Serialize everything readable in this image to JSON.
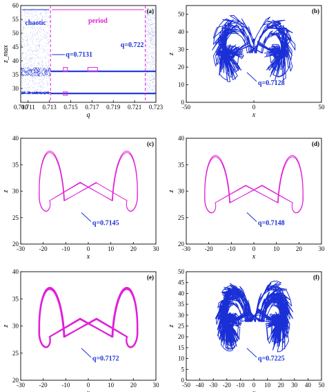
{
  "colors": {
    "blue": "#1a2fd6",
    "magenta": "#e020d8",
    "black": "#000000"
  },
  "chart_data": [
    {
      "panel": "(a)",
      "type": "scatter",
      "xlabel": "q",
      "ylabel": "z_max",
      "xlim": [
        0.7103,
        0.723
      ],
      "ylim": [
        25,
        60
      ],
      "xticks": [
        0.7103,
        0.711,
        0.713,
        0.715,
        0.717,
        0.719,
        0.721,
        0.723
      ],
      "xtick_labels": [
        "0.710",
        "0.711",
        "0.713",
        "0.715",
        "0.717",
        "0.719",
        "0.721",
        "0.723"
      ],
      "yticks": [
        30,
        35,
        40,
        45,
        50,
        55,
        60
      ],
      "region_labels": [
        {
          "text": "chaotic",
          "x_range": [
            0.7103,
            0.7131
          ]
        },
        {
          "text": "period",
          "x_range": [
            0.7131,
            0.722
          ]
        }
      ],
      "markers": [
        {
          "label": "q=0.7131",
          "x": 0.7131
        },
        {
          "label": "q=0.722",
          "x": 0.722
        }
      ],
      "bands": [
        {
          "name": "upper",
          "y_chaotic": [
            34.5,
            37.5
          ],
          "y_period": 36.2
        },
        {
          "name": "lower",
          "y_chaotic": [
            28.0,
            28.8
          ],
          "y_period": 28.2
        }
      ],
      "highlight_boxes_x": [
        0.7145,
        0.7168
      ]
    },
    {
      "panel": "(b)",
      "type": "line",
      "xlabel": "x",
      "ylabel": "z",
      "xlim": [
        -50,
        50
      ],
      "ylim": [
        0,
        55
      ],
      "xticks": [
        -50,
        0,
        50
      ],
      "yticks": [
        0,
        10,
        20,
        30,
        40,
        50
      ],
      "annotation": "q=0.7128",
      "attractor": {
        "kind": "chaotic",
        "cx": 17,
        "cz": 28,
        "width": 28,
        "height": 18,
        "loops": 6
      }
    },
    {
      "panel": "(c)",
      "type": "line",
      "xlabel": "x",
      "ylabel": "z",
      "xlim": [
        -30,
        30
      ],
      "ylim": [
        20,
        40
      ],
      "xticks": [
        -30,
        -20,
        -10,
        0,
        10,
        20,
        30
      ],
      "yticks": [
        20,
        25,
        30,
        35,
        40
      ],
      "annotation": "q=0.7145",
      "attractor": {
        "kind": "periodic",
        "cx": 18,
        "cz": 28.2,
        "width": 11,
        "height": 8.7,
        "loops": 2
      }
    },
    {
      "panel": "(d)",
      "type": "line",
      "xlabel": "x",
      "ylabel": "z",
      "xlim": [
        -30,
        30
      ],
      "ylim": [
        20,
        40
      ],
      "xticks": [
        -30,
        -20,
        -10,
        0,
        10,
        20,
        30
      ],
      "yticks": [
        20,
        25,
        30,
        35,
        40
      ],
      "annotation": "q=0.7148",
      "attractor": {
        "kind": "periodic",
        "cx": 18,
        "cz": 27.8,
        "width": 11,
        "height": 8.3,
        "loops": 3
      }
    },
    {
      "panel": "(e)",
      "type": "line",
      "xlabel": "x",
      "ylabel": "z",
      "xlim": [
        -30,
        30
      ],
      "ylim": [
        20,
        40
      ],
      "xticks": [
        -30,
        -20,
        -10,
        0,
        10,
        20,
        30
      ],
      "yticks": [
        20,
        25,
        30,
        35,
        40
      ],
      "annotation": "q=0.7172",
      "attractor": {
        "kind": "periodic",
        "cx": 18,
        "cz": 28,
        "width": 11,
        "height": 8.4,
        "loops": 8
      }
    },
    {
      "panel": "(f)",
      "type": "line",
      "xlabel": "x",
      "ylabel": "z",
      "xlim": [
        -50,
        50
      ],
      "ylim": [
        0,
        50
      ],
      "xticks": [
        -50,
        -40,
        -30,
        -20,
        -10,
        0,
        10,
        20,
        30,
        40,
        50
      ],
      "yticks": [
        0,
        5,
        10,
        15,
        20,
        25,
        30,
        35,
        40,
        45,
        50
      ],
      "annotation": "q=0.7225",
      "attractor": {
        "kind": "chaotic",
        "cx": 17,
        "cz": 27,
        "width": 25,
        "height": 16,
        "loops": 14
      }
    }
  ]
}
